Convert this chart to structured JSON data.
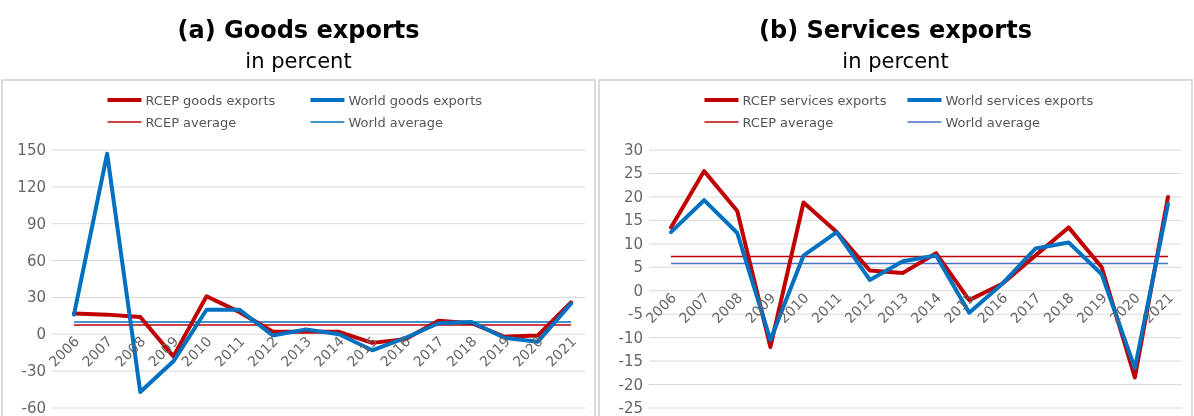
{
  "chart_data": [
    {
      "type": "line",
      "title": "(a) Goods exports",
      "subtitle": "in percent",
      "categories": [
        "2006",
        "2007",
        "2008",
        "2009",
        "2010",
        "2011",
        "2012",
        "2013",
        "2014",
        "2015",
        "2016",
        "2017",
        "2018",
        "2019",
        "2020",
        "2021"
      ],
      "series": [
        {
          "name": "RCEP goods exports",
          "color": "#c00000",
          "values": [
            17,
            16,
            14,
            -18,
            31,
            18,
            2,
            2,
            2,
            -7,
            -4,
            11,
            9,
            -2,
            -1,
            26
          ]
        },
        {
          "name": "World goods exports",
          "color": "#0070c0",
          "values": [
            16,
            147,
            -47,
            -22,
            20,
            20,
            -1,
            4,
            0,
            -13,
            -3,
            9,
            10,
            -3,
            -6,
            25
          ]
        },
        {
          "name": "RCEP average",
          "color": "#c00000",
          "line_style": "solid",
          "values": [
            7.5,
            7.5,
            7.5,
            7.5,
            7.5,
            7.5,
            7.5,
            7.5,
            7.5,
            7.5,
            7.5,
            7.5,
            7.5,
            7.5,
            7.5,
            7.5
          ]
        },
        {
          "name": "World average",
          "color": "#0070c0",
          "line_style": "solid",
          "values": [
            10,
            10,
            10,
            10,
            10,
            10,
            10,
            10,
            10,
            10,
            10,
            10,
            10,
            10,
            10,
            10
          ]
        }
      ],
      "ylim": [
        -60,
        150
      ],
      "yticks": [
        -60,
        -30,
        0,
        30,
        60,
        90,
        120,
        150
      ],
      "grid": "y",
      "legend": "top",
      "marker": "none"
    },
    {
      "type": "line",
      "title": "(b) Services exports",
      "subtitle": "in percent",
      "categories": [
        "2006",
        "2007",
        "2008",
        "2009",
        "2010",
        "2011",
        "2012",
        "2013",
        "2014",
        "2015",
        "2016",
        "2017",
        "2018",
        "2019",
        "2020",
        "2021"
      ],
      "series": [
        {
          "name": "RCEP services exports",
          "color": "#c00000",
          "values": [
            13.5,
            25.5,
            17,
            -12,
            18.8,
            12.5,
            4.3,
            3.8,
            8,
            -2,
            1.5,
            7.5,
            13.5,
            5,
            -18.5,
            20
          ]
        },
        {
          "name": "World services exports",
          "color": "#0070c0",
          "values": [
            12.5,
            19.3,
            12.3,
            -10.5,
            7.5,
            12.5,
            2.3,
            6.3,
            7.5,
            -4.7,
            1.5,
            9,
            10.3,
            3.5,
            -16.5,
            18.5
          ]
        },
        {
          "name": "RCEP average",
          "color": "#c00000",
          "line_style": "solid",
          "values": [
            7.3,
            7.3,
            7.3,
            7.3,
            7.3,
            7.3,
            7.3,
            7.3,
            7.3,
            7.3,
            7.3,
            7.3,
            7.3,
            7.3,
            7.3,
            7.3
          ]
        },
        {
          "name": "World average",
          "color": "#4472c4",
          "line_style": "solid",
          "values": [
            5.8,
            5.8,
            5.8,
            5.8,
            5.8,
            5.8,
            5.8,
            5.8,
            5.8,
            5.8,
            5.8,
            5.8,
            5.8,
            5.8,
            5.8,
            5.8
          ]
        }
      ],
      "ylim": [
        -25,
        30
      ],
      "yticks": [
        -25,
        -20,
        -15,
        -10,
        -5,
        0,
        5,
        10,
        15,
        20,
        25,
        30
      ],
      "grid": "y",
      "legend": "top",
      "marker": "none"
    }
  ]
}
